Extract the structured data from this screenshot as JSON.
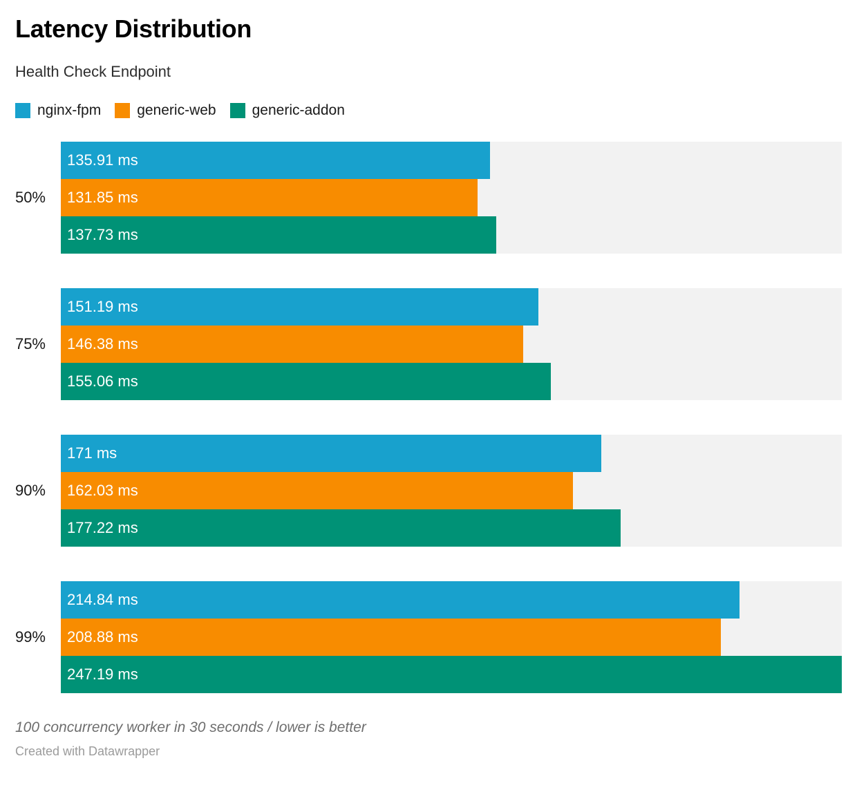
{
  "header": {
    "title": "Latency Distribution",
    "subtitle": "Health Check Endpoint"
  },
  "chart_data": {
    "type": "bar",
    "orientation": "horizontal",
    "title": "Latency Distribution",
    "subtitle": "Health Check Endpoint",
    "categories": [
      "50%",
      "75%",
      "90%",
      "99%"
    ],
    "series": [
      {
        "name": "nginx-fpm",
        "color": "#18a1cd",
        "values": [
          135.91,
          151.19,
          171,
          214.84
        ],
        "labels": [
          "135.91 ms",
          "151.19 ms",
          "171 ms",
          "214.84 ms"
        ]
      },
      {
        "name": "generic-web",
        "color": "#f88c00",
        "values": [
          131.85,
          146.38,
          162.03,
          208.88
        ],
        "labels": [
          "131.85 ms",
          "146.38 ms",
          "162.03 ms",
          "208.88 ms"
        ]
      },
      {
        "name": "generic-addon",
        "color": "#009276",
        "values": [
          137.73,
          155.06,
          177.22,
          247.19
        ],
        "labels": [
          "137.73 ms",
          "155.06 ms",
          "177.22 ms",
          "247.19 ms"
        ]
      }
    ],
    "value_unit": "ms",
    "xlim": [
      0,
      247.19
    ],
    "track_color": "#f2f2f2",
    "grid": false,
    "legend_position": "top",
    "value_labels_inside_bars": true
  },
  "footer": {
    "note": "100 concurrency worker in 30 seconds / lower is better",
    "byline": "Created with Datawrapper"
  }
}
